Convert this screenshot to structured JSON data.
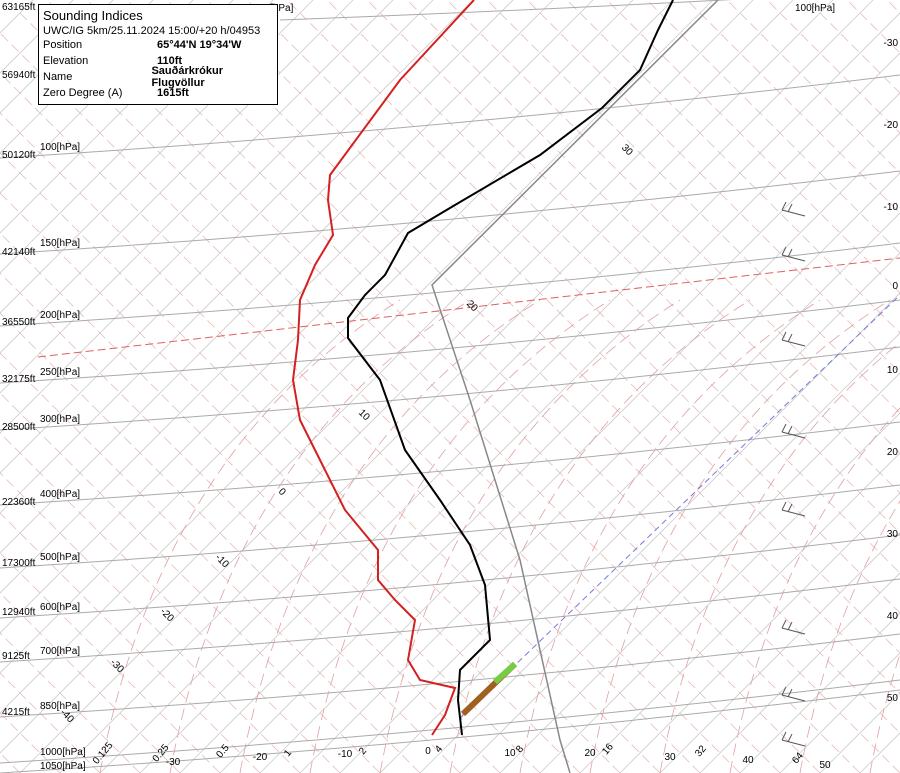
{
  "info": {
    "title": "Sounding Indices",
    "run": "UWC/IG 5km/25.11.2024 15:00/+20 h/04953",
    "rows": [
      [
        "Position",
        "65°44'N 19°34'W"
      ],
      [
        "Elevation",
        "110ft"
      ],
      [
        "Name",
        "Sauðárkrókur Flugvöllur"
      ],
      [
        "Zero Degree (A)",
        "1615ft"
      ]
    ]
  },
  "heights": [
    "63165ft",
    "56940ft",
    "50120ft",
    "42140ft",
    "36550ft",
    "32175ft",
    "28500ft",
    "22360ft",
    "17300ft",
    "12940ft",
    "9125ft",
    "4215ft"
  ],
  "pressures": [
    "100[hPa]",
    "150[hPa]",
    "200[hPa]",
    "250[hPa]",
    "300[hPa]",
    "400[hPa]",
    "500[hPa]",
    "600[hPa]",
    "700[hPa]",
    "850[hPa]",
    "1000[hPa]",
    "1050[hPa]"
  ],
  "top_labels": [
    "[hPa]",
    "100[hPa]"
  ],
  "right_axis": [
    "-30",
    "-20",
    "-10",
    "0",
    "10",
    "20",
    "30",
    "40",
    "50"
  ],
  "bottom_temps": [
    "-30",
    "-20",
    "-10",
    "0",
    "10",
    "20",
    "30",
    "40",
    "50"
  ],
  "mixing_ratios": [
    "0.125",
    "0.25",
    "0.5",
    "1",
    "2",
    "4",
    "8",
    "16",
    "32",
    "64"
  ],
  "isotherm_labels": [
    "30",
    "20",
    "10",
    "0",
    "-10",
    "-20",
    "-30",
    "-40"
  ]
}
